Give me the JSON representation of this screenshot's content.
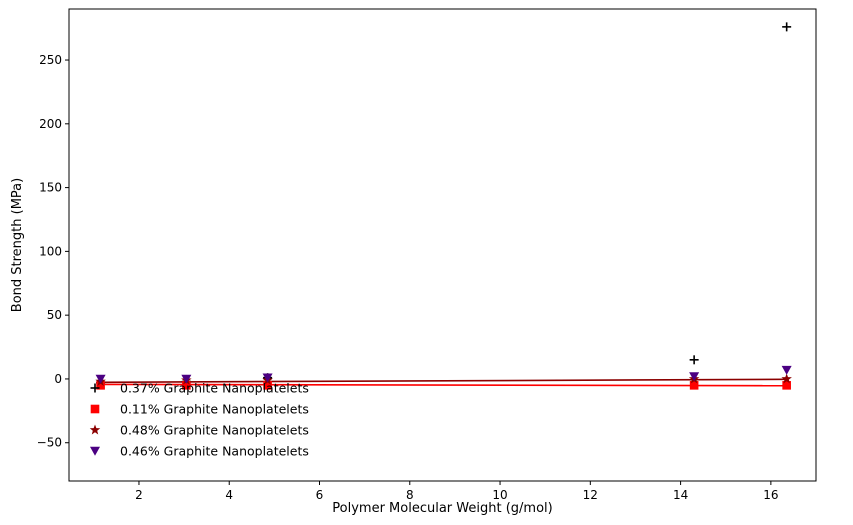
{
  "chart_data": {
    "type": "scatter",
    "title": "",
    "xlabel": "Polymer Molecular Weight (g/mol)",
    "ylabel": "Bond Strength (MPa)",
    "xlim": [
      0.45,
      17.0
    ],
    "ylim": [
      -80,
      290
    ],
    "xticks": [
      2,
      4,
      6,
      8,
      10,
      12,
      14,
      16
    ],
    "yticks": [
      -50,
      0,
      50,
      100,
      150,
      200,
      250
    ],
    "grid": false,
    "legend_position": "lower-left",
    "series": [
      {
        "name": "0.37% Graphite Nanoplatelets",
        "marker": "plus",
        "color": "#000000",
        "x": [
          1.15,
          3.05,
          4.85,
          14.3,
          16.35
        ],
        "y": [
          -3,
          -2,
          1,
          15,
          276
        ],
        "fit": null
      },
      {
        "name": "0.11% Graphite Nanoplatelets",
        "marker": "square",
        "color": "#ff0000",
        "x": [
          1.15,
          3.05,
          4.85,
          14.3,
          16.35
        ],
        "y": [
          -5,
          -5,
          -5,
          -5,
          -5
        ],
        "fit": {
          "x": [
            1.15,
            16.35
          ],
          "y": [
            -4.3,
            -5.3
          ],
          "color": "#ff0000"
        }
      },
      {
        "name": "0.48% Graphite Nanoplatelets",
        "marker": "star",
        "color": "#8b0000",
        "x": [
          1.15,
          3.05,
          4.85,
          14.3,
          16.35
        ],
        "y": [
          -2,
          -1,
          -1,
          0,
          0
        ],
        "fit": {
          "x": [
            1.15,
            16.35
          ],
          "y": [
            -2.6,
            -0.3
          ],
          "color": "#8b0000"
        }
      },
      {
        "name": "0.46% Graphite Nanoplatelets",
        "marker": "triangle-down",
        "color": "#4b0082",
        "x": [
          1.15,
          3.05,
          4.85,
          14.3,
          16.35
        ],
        "y": [
          0,
          0,
          1,
          2,
          7
        ],
        "fit": null
      }
    ]
  }
}
